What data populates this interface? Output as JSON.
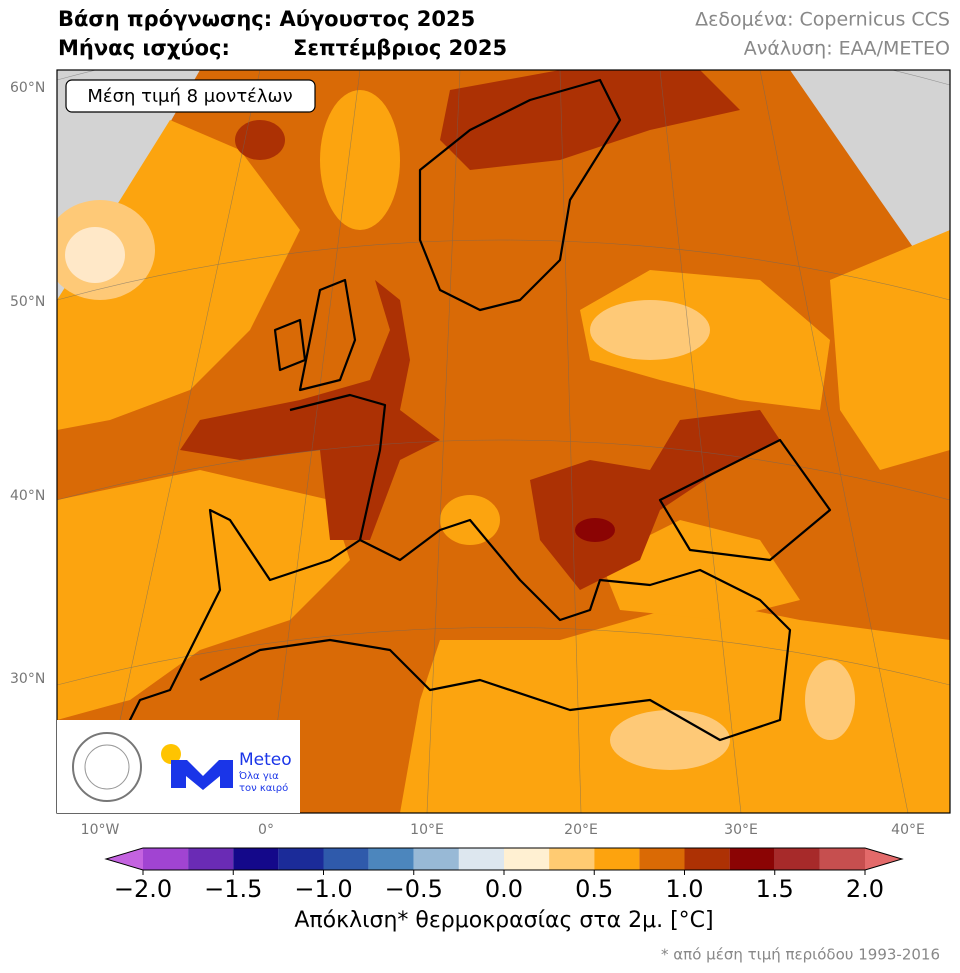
{
  "header": {
    "forecast_base": "Βάση πρόγνωσης: Αύγουστος 2025",
    "valid_month_label": "Μήνας ισχύος:",
    "valid_month": "Σεπτέμβριος 2025",
    "source": "Δεδομένα: Copernicus CCS",
    "analysis": "Ανάλυση: ΕΑΑ/METEO"
  },
  "map": {
    "inset_label": "Μέση τιμή 8 μοντέλων",
    "lat_labels": [
      "60°N",
      "50°N",
      "40°N",
      "30°N"
    ],
    "lon_labels": [
      "10°W",
      "0°",
      "10°E",
      "20°E",
      "30°E",
      "40°E"
    ],
    "logo": {
      "name": "Meteo",
      "tagline_1": "Όλα για",
      "tagline_2": "τον καιρό"
    }
  },
  "colorbar": {
    "boundaries": [
      -2,
      -1.75,
      -1.5,
      -1.25,
      -1,
      -0.75,
      -0.5,
      -0.25,
      0,
      0.25,
      0.5,
      0.75,
      1,
      1.25,
      1.5,
      1.75,
      2
    ],
    "colors": [
      "#a144d2",
      "#6a2bb5",
      "#14088a",
      "#1b2b99",
      "#2f5aab",
      "#4c86bd",
      "#98b9d6",
      "#dde7ef",
      "#fff0d2",
      "#ffcb72",
      "#fda30e",
      "#da6a05",
      "#ad3104",
      "#8b0404",
      "#a72a2a",
      "#c64f4f"
    ],
    "extend_colors": [
      "#c463e0",
      "#e36a6a"
    ],
    "ticks": [
      {
        "value": -2,
        "label": "−2.0"
      },
      {
        "value": -1.5,
        "label": "−1.5"
      },
      {
        "value": -1,
        "label": "−1.0"
      },
      {
        "value": -0.5,
        "label": "−0.5"
      },
      {
        "value": 0,
        "label": "0.0"
      },
      {
        "value": 0.5,
        "label": "0.5"
      },
      {
        "value": 1,
        "label": "1.0"
      },
      {
        "value": 1.5,
        "label": "1.5"
      },
      {
        "value": 2,
        "label": "2.0"
      }
    ],
    "label": "Απόκλιση* θερμοκρασίας στα 2μ. [°C]",
    "footnote": "* από μέση τιμή περιόδου 1993-2016"
  }
}
